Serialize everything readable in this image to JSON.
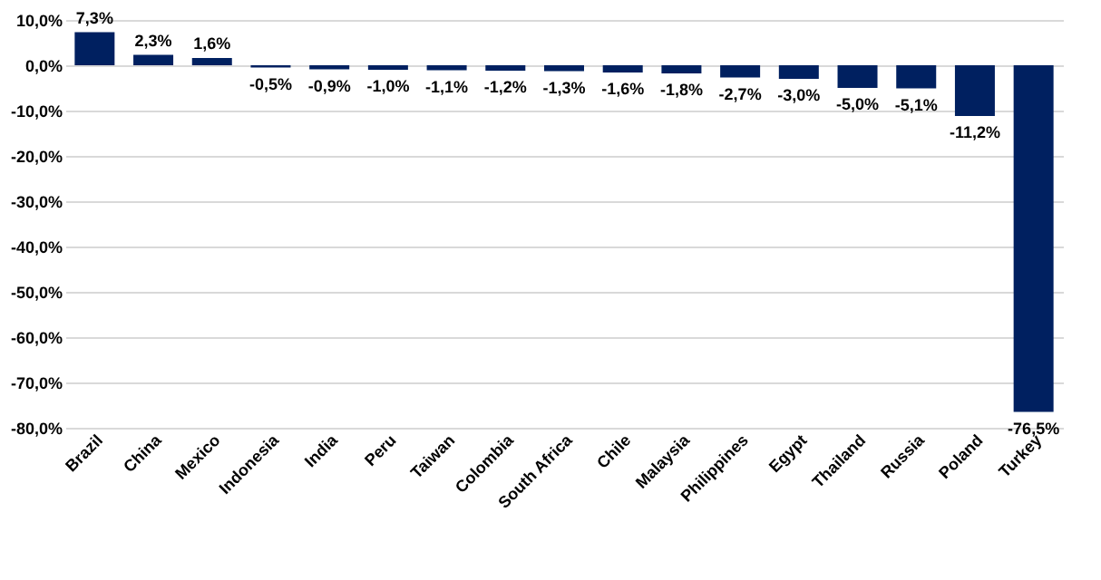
{
  "chart_data": {
    "type": "bar",
    "categories": [
      "Brazil",
      "China",
      "Mexico",
      "Indonesia",
      "India",
      "Peru",
      "Taiwan",
      "Colombia",
      "South Africa",
      "Chile",
      "Malaysia",
      "Philippines",
      "Egypt",
      "Thailand",
      "Russia",
      "Poland",
      "Turkey"
    ],
    "values": [
      7.3,
      2.3,
      1.6,
      -0.5,
      -0.9,
      -1.0,
      -1.1,
      -1.2,
      -1.3,
      -1.6,
      -1.8,
      -2.7,
      -3.0,
      -5.0,
      -5.1,
      -11.2,
      -76.5
    ],
    "value_labels": [
      "7,3%",
      "2,3%",
      "1,6%",
      "-0,5%",
      "-0,9%",
      "-1,0%",
      "-1,1%",
      "-1,2%",
      "-1,3%",
      "-1,6%",
      "-1,8%",
      "-2,7%",
      "-3,0%",
      "-5,0%",
      "-5,1%",
      "-11,2%",
      "-76,5%"
    ],
    "color": "#002060",
    "ylim": [
      -80,
      10
    ],
    "yticks": [
      {
        "value": -80,
        "label": "-80,0%"
      },
      {
        "value": -70,
        "label": "-70,0%"
      },
      {
        "value": -60,
        "label": "-60,0%"
      },
      {
        "value": -50,
        "label": "-50,0%"
      },
      {
        "value": -40,
        "label": "-40,0%"
      },
      {
        "value": -30,
        "label": "-30,0%"
      },
      {
        "value": -20,
        "label": "-20,0%"
      },
      {
        "value": -10,
        "label": "-10,0%"
      },
      {
        "value": 0,
        "label": "0,0%"
      },
      {
        "value": 10,
        "label": "10,0%"
      }
    ],
    "grid": "y"
  }
}
